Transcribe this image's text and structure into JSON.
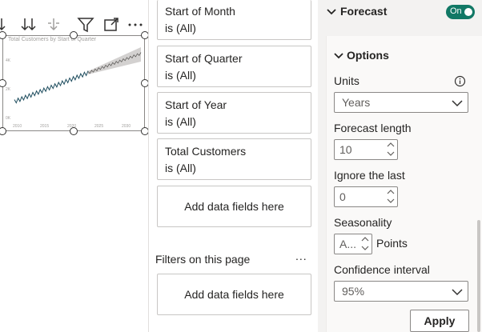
{
  "canvas": {
    "visual_title": "Total Customers by Start of Quarter",
    "toolbar": [
      "drill-up-icon",
      "drill-down-all-icon",
      "expand-hierarchy-icon",
      "filter-icon",
      "focus-mode-icon",
      "more-options-icon"
    ],
    "x_tick_labels": [
      "2010",
      "2015",
      "2020",
      "2025",
      "2030"
    ],
    "y_tick_labels": [
      "4K",
      "2K",
      "0K"
    ]
  },
  "filters": {
    "cards": [
      {
        "name": "Start of Month",
        "state": "is (All)"
      },
      {
        "name": "Start of Quarter",
        "state": "is (All)"
      },
      {
        "name": "Start of Year",
        "state": "is (All)"
      },
      {
        "name": "Total Customers",
        "state": "is (All)"
      }
    ],
    "add_visual_fields": "Add data fields here",
    "page_header": "Filters on this page",
    "page_more": "...",
    "add_page_fields": "Add data fields here"
  },
  "format": {
    "forecast": {
      "title": "Forecast",
      "toggle": "On"
    },
    "options": {
      "title": "Options",
      "units_label": "Units",
      "units_value": "Years",
      "forecast_length_label": "Forecast length",
      "forecast_length_value": "10",
      "ignore_last_label": "Ignore the last",
      "ignore_last_value": "0",
      "seasonality_label": "Seasonality",
      "seasonality_value": "A...",
      "seasonality_unit": "Points",
      "confidence_label": "Confidence interval",
      "confidence_value": "95%",
      "apply_label": "Apply"
    }
  },
  "colors": {
    "toggle_on": "#117865",
    "series_line": "#1f4e5f",
    "forecast_band": "#c8c6c4"
  }
}
